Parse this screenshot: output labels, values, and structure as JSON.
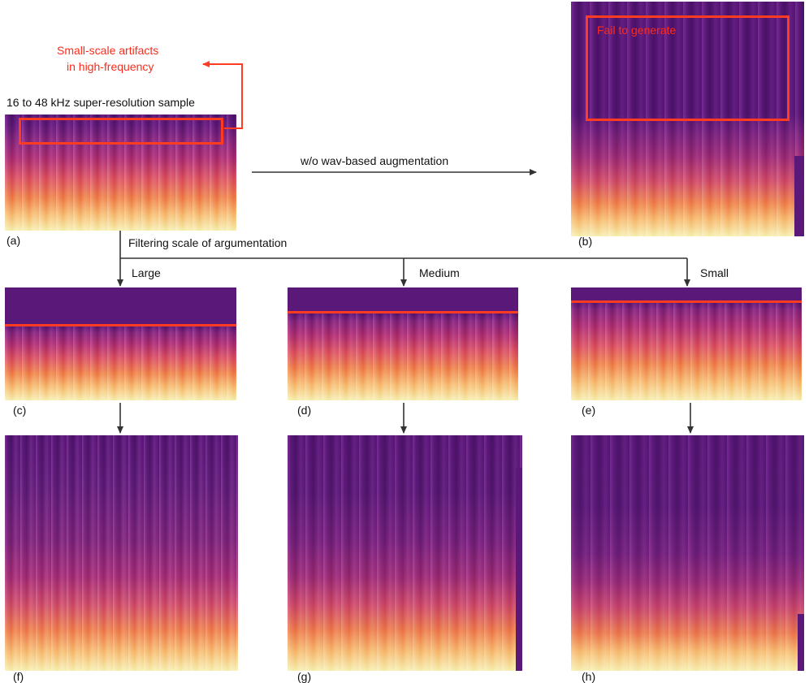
{
  "annotation": {
    "line1": "Small-scale artifacts",
    "line2": "in high-frequency"
  },
  "sample_title": "16 to 48 kHz super-resolution sample",
  "arrow_label": "w/o wav-based augmentation",
  "fail_label": "Fail to generate",
  "branch_label": "Filtering scale of argumentation",
  "scales": [
    "Large",
    "Medium",
    "Small"
  ],
  "captions": {
    "a": "(a)",
    "b": "(b)",
    "c": "(c)",
    "d": "(d)",
    "e": "(e)",
    "f": "(f)",
    "g": "(g)",
    "h": "(h)"
  },
  "colors": {
    "artifact_red": "#ff3b22",
    "text_red": "#ff2a1a",
    "purple": "#5a1878",
    "magenta": "#b3357a",
    "orange": "#f07850",
    "cream": "#f7f0b8"
  }
}
